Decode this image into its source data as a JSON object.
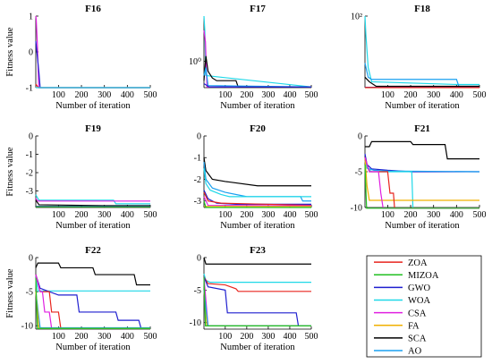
{
  "figure": {
    "x_label": "Number of iteration",
    "y_label": "Fitness value",
    "x_ticks": [
      100,
      200,
      300,
      400,
      500
    ]
  },
  "legend": {
    "items": [
      {
        "name": "ZOA",
        "color": "#e8251e"
      },
      {
        "name": "MIZOA",
        "color": "#22c022"
      },
      {
        "name": "GWO",
        "color": "#1f1fcf"
      },
      {
        "name": "WOA",
        "color": "#1fd8e8"
      },
      {
        "name": "CSA",
        "color": "#e020e0"
      },
      {
        "name": "FA",
        "color": "#f0b000"
      },
      {
        "name": "SCA",
        "color": "#000000"
      },
      {
        "name": "AO",
        "color": "#1aa0f0"
      }
    ]
  },
  "chart_data": [
    {
      "type": "line",
      "title": "F16",
      "xlabel": "Number of iteration",
      "ylabel": "Fitness value",
      "xlim": [
        1,
        500
      ],
      "ylim": [
        -1,
        1
      ],
      "y_ticks": [
        {
          "value": 1,
          "label": "1"
        },
        {
          "value": 0,
          "label": "0"
        },
        {
          "value": -1,
          "label": "-1"
        }
      ],
      "series": [
        {
          "name": "CSA",
          "color": "#e020e0",
          "x": [
            1,
            3,
            8,
            14,
            500
          ],
          "y": [
            1,
            0.9,
            0.2,
            -1,
            -1
          ]
        },
        {
          "name": "GWO",
          "color": "#1f1fcf",
          "x": [
            1,
            9,
            15,
            20,
            500
          ],
          "y": [
            0.3,
            -0.2,
            -0.6,
            -1,
            -1
          ]
        },
        {
          "name": "ZOA",
          "color": "#e8251e",
          "x": [
            1,
            12,
            500
          ],
          "y": [
            -0.9,
            -1,
            -1
          ]
        },
        {
          "name": "WOA",
          "color": "#1fd8e8",
          "x": [
            1,
            500
          ],
          "y": [
            -1,
            -1
          ]
        }
      ]
    },
    {
      "type": "line",
      "title": "F17",
      "xlabel": "Number of iteration",
      "ylabel": "",
      "xlim": [
        1,
        500
      ],
      "ylim": [
        0.39,
        5
      ],
      "log_y": true,
      "y_ticks": [
        {
          "value": 1,
          "label": "10⁰"
        }
      ],
      "series": [
        {
          "name": "WOA",
          "color": "#1fd8e8",
          "x": [
            1,
            5,
            10,
            500
          ],
          "y": [
            5,
            3,
            0.6,
            0.4
          ]
        },
        {
          "name": "CSA",
          "color": "#e020e0",
          "x": [
            1,
            8,
            15,
            500
          ],
          "y": [
            3,
            2,
            0.4,
            0.4
          ]
        },
        {
          "name": "SCA",
          "color": "#000000",
          "x": [
            1,
            10,
            20,
            40,
            60,
            150,
            160,
            500
          ],
          "y": [
            0.5,
            1.2,
            0.7,
            0.55,
            0.5,
            0.5,
            0.4,
            0.4
          ]
        },
        {
          "name": "AO",
          "color": "#1aa0f0",
          "x": [
            1,
            10,
            20,
            500
          ],
          "y": [
            0.6,
            0.8,
            0.42,
            0.4
          ]
        },
        {
          "name": "GWO",
          "color": "#1f1fcf",
          "x": [
            1,
            25,
            500
          ],
          "y": [
            0.45,
            0.4,
            0.4
          ]
        }
      ]
    },
    {
      "type": "line",
      "title": "F18",
      "xlabel": "Number of iteration",
      "ylabel": "",
      "xlim": [
        1,
        500
      ],
      "ylim": [
        3,
        100
      ],
      "log_y": true,
      "y_ticks": [
        {
          "value": 100,
          "label": "10²"
        }
      ],
      "series": [
        {
          "name": "WOA",
          "color": "#1fd8e8",
          "x": [
            1,
            5,
            15,
            30,
            400,
            500
          ],
          "y": [
            100,
            40,
            8,
            4,
            3.5,
            3.5
          ]
        },
        {
          "name": "AO",
          "color": "#1aa0f0",
          "x": [
            1,
            15,
            30,
            400,
            410,
            500
          ],
          "y": [
            10,
            5,
            4.5,
            4.5,
            3.2,
            3.2
          ]
        },
        {
          "name": "SCA",
          "color": "#000000",
          "x": [
            1,
            20,
            50,
            500
          ],
          "y": [
            5,
            4,
            3.2,
            3.2
          ]
        },
        {
          "name": "FA",
          "color": "#f0b000",
          "x": [
            1,
            500
          ],
          "y": [
            3,
            3
          ]
        },
        {
          "name": "GWO",
          "color": "#1f1fcf",
          "x": [
            1,
            500
          ],
          "y": [
            3.05,
            3.05
          ]
        },
        {
          "name": "ZOA",
          "color": "#e8251e",
          "x": [
            1,
            500
          ],
          "y": [
            3.02,
            3.02
          ]
        }
      ]
    },
    {
      "type": "line",
      "title": "F19",
      "xlabel": "Number of iteration",
      "ylabel": "Fitness value",
      "xlim": [
        1,
        500
      ],
      "ylim": [
        -3.9,
        0
      ],
      "y_ticks": [
        {
          "value": 0,
          "label": "0"
        },
        {
          "value": -1,
          "label": "-1"
        },
        {
          "value": -2,
          "label": "-2"
        },
        {
          "value": -3,
          "label": "-3"
        }
      ],
      "series": [
        {
          "name": "WOA",
          "color": "#1fd8e8",
          "x": [
            1,
            5,
            15,
            340,
            350,
            500
          ],
          "y": [
            -3.2,
            -3.3,
            -3.5,
            -3.5,
            -3.7,
            -3.7
          ]
        },
        {
          "name": "CSA",
          "color": "#e020e0",
          "x": [
            1,
            10,
            500
          ],
          "y": [
            -3.4,
            -3.55,
            -3.55
          ]
        },
        {
          "name": "SCA",
          "color": "#000000",
          "x": [
            1,
            15,
            300,
            500
          ],
          "y": [
            -3.5,
            -3.75,
            -3.8,
            -3.8
          ]
        },
        {
          "name": "GWO",
          "color": "#1f1fcf",
          "x": [
            1,
            500
          ],
          "y": [
            -3.84,
            -3.84
          ]
        },
        {
          "name": "MIZOA",
          "color": "#22c022",
          "x": [
            1,
            500
          ],
          "y": [
            -3.86,
            -3.86
          ]
        }
      ]
    },
    {
      "type": "line",
      "title": "F20",
      "xlabel": "Number of iteration",
      "ylabel": "",
      "xlim": [
        1,
        500
      ],
      "ylim": [
        -3.3,
        0
      ],
      "y_ticks": [
        {
          "value": 0,
          "label": "0"
        },
        {
          "value": -1,
          "label": "-1"
        },
        {
          "value": -2,
          "label": "-2"
        },
        {
          "value": -3,
          "label": "-3"
        }
      ],
      "series": [
        {
          "name": "SCA",
          "color": "#000000",
          "x": [
            1,
            10,
            40,
            100,
            250,
            500
          ],
          "y": [
            -1,
            -1.6,
            -2.0,
            -2.1,
            -2.3,
            -2.3
          ]
        },
        {
          "name": "AO",
          "color": "#1aa0f0",
          "x": [
            1,
            10,
            40,
            100,
            200,
            450,
            460,
            500
          ],
          "y": [
            -1.2,
            -2.0,
            -2.4,
            -2.6,
            -2.8,
            -2.8,
            -3.0,
            -3.0
          ]
        },
        {
          "name": "WOA",
          "color": "#1fd8e8",
          "x": [
            1,
            10,
            30,
            80,
            120,
            500
          ],
          "y": [
            -1.5,
            -2.2,
            -2.5,
            -2.7,
            -2.8,
            -2.8
          ]
        },
        {
          "name": "GWO",
          "color": "#1f1fcf",
          "x": [
            1,
            20,
            60,
            150,
            500
          ],
          "y": [
            -2.5,
            -2.9,
            -3.1,
            -3.15,
            -3.15
          ]
        },
        {
          "name": "ZOA",
          "color": "#e8251e",
          "x": [
            1,
            20,
            80,
            500
          ],
          "y": [
            -2.6,
            -3.0,
            -3.1,
            -3.2
          ]
        },
        {
          "name": "CSA",
          "color": "#e020e0",
          "x": [
            1,
            20,
            500
          ],
          "y": [
            -2.8,
            -3.2,
            -3.22
          ]
        },
        {
          "name": "FA",
          "color": "#f0b000",
          "x": [
            1,
            500
          ],
          "y": [
            -3.25,
            -3.25
          ]
        },
        {
          "name": "MIZOA",
          "color": "#22c022",
          "x": [
            1,
            10,
            500
          ],
          "y": [
            -3.0,
            -3.3,
            -3.3
          ]
        }
      ]
    },
    {
      "type": "line",
      "title": "F21",
      "xlabel": "Number of iteration",
      "ylabel": "",
      "xlim": [
        1,
        500
      ],
      "ylim": [
        -10,
        0
      ],
      "y_ticks": [
        {
          "value": 0,
          "label": "0"
        },
        {
          "value": -5,
          "label": "-5"
        },
        {
          "value": -10,
          "label": "-10"
        }
      ],
      "series": [
        {
          "name": "SCA",
          "color": "#000000",
          "x": [
            1,
            20,
            30,
            200,
            210,
            350,
            360,
            500
          ],
          "y": [
            -1.5,
            -1.5,
            -0.8,
            -0.8,
            -1.2,
            -1.2,
            -3.2,
            -3.2
          ]
        },
        {
          "name": "GWO",
          "color": "#1f1fcf",
          "x": [
            1,
            10,
            30,
            100,
            200,
            500
          ],
          "y": [
            -2.5,
            -4.0,
            -4.6,
            -4.8,
            -5.0,
            -5.0
          ]
        },
        {
          "name": "AO",
          "color": "#1aa0f0",
          "x": [
            1,
            10,
            40,
            100,
            500
          ],
          "y": [
            -3.0,
            -4.5,
            -4.8,
            -4.9,
            -5.0
          ]
        },
        {
          "name": "WOA",
          "color": "#1fd8e8",
          "x": [
            1,
            10,
            30,
            205,
            210,
            500
          ],
          "y": [
            -3.5,
            -4.5,
            -5.0,
            -5.0,
            -10.1,
            -10.1
          ]
        },
        {
          "name": "FA",
          "color": "#f0b000",
          "x": [
            1,
            10,
            20,
            500
          ],
          "y": [
            -3.0,
            -7.0,
            -9.0,
            -9.0
          ]
        },
        {
          "name": "ZOA",
          "color": "#e8251e",
          "x": [
            1,
            20,
            100,
            110,
            125,
            130,
            500
          ],
          "y": [
            -3.0,
            -5.0,
            -5.0,
            -8.0,
            -8.0,
            -10.1,
            -10.1
          ]
        },
        {
          "name": "CSA",
          "color": "#e020e0",
          "x": [
            1,
            20,
            60,
            70,
            80,
            500
          ],
          "y": [
            -3.0,
            -5.0,
            -5.0,
            -8.0,
            -10.1,
            -10.1
          ]
        },
        {
          "name": "MIZOA",
          "color": "#22c022",
          "x": [
            1,
            8,
            500
          ],
          "y": [
            -4.0,
            -10.1,
            -10.1
          ]
        }
      ]
    },
    {
      "type": "line",
      "title": "F22",
      "xlabel": "Number of iteration",
      "ylabel": "Fitness value",
      "xlim": [
        1,
        500
      ],
      "ylim": [
        -10.5,
        0
      ],
      "y_ticks": [
        {
          "value": 0,
          "label": "0"
        },
        {
          "value": -5,
          "label": "-5"
        },
        {
          "value": -10,
          "label": "-10"
        }
      ],
      "series": [
        {
          "name": "SCA",
          "color": "#000000",
          "x": [
            1,
            10,
            100,
            110,
            250,
            260,
            430,
            440,
            500
          ],
          "y": [
            -1.5,
            -0.8,
            -0.8,
            -1.5,
            -1.5,
            -2.5,
            -2.5,
            -4.0,
            -4.0
          ]
        },
        {
          "name": "WOA",
          "color": "#1fd8e8",
          "x": [
            1,
            10,
            500
          ],
          "y": [
            -2.5,
            -4.9,
            -4.9
          ]
        },
        {
          "name": "GWO",
          "color": "#1f1fcf",
          "x": [
            1,
            20,
            100,
            180,
            190,
            350,
            360,
            450,
            460,
            500
          ],
          "y": [
            -2.5,
            -4.5,
            -5.5,
            -5.5,
            -8.0,
            -8.0,
            -9.2,
            -9.2,
            -10.4,
            -10.4
          ]
        },
        {
          "name": "ZOA",
          "color": "#e8251e",
          "x": [
            1,
            20,
            60,
            70,
            100,
            110,
            500
          ],
          "y": [
            -2.5,
            -5.0,
            -5.0,
            -8.0,
            -8.0,
            -10.4,
            -10.4
          ]
        },
        {
          "name": "CSA",
          "color": "#e020e0",
          "x": [
            1,
            20,
            30,
            40,
            60,
            70,
            500
          ],
          "y": [
            -2.5,
            -5.0,
            -5.0,
            -8.0,
            -8.0,
            -10.4,
            -10.4
          ]
        },
        {
          "name": "AO",
          "color": "#1aa0f0",
          "x": [
            1,
            20,
            500
          ],
          "y": [
            -5.0,
            -10.3,
            -10.3
          ]
        },
        {
          "name": "FA",
          "color": "#f0b000",
          "x": [
            1,
            15,
            500
          ],
          "y": [
            -5.0,
            -10.4,
            -10.4
          ]
        },
        {
          "name": "MIZOA",
          "color": "#22c022",
          "x": [
            1,
            8,
            500
          ],
          "y": [
            -3.0,
            -10.4,
            -10.4
          ]
        }
      ]
    },
    {
      "type": "line",
      "title": "F23",
      "xlabel": "Number of iteration",
      "ylabel": "",
      "xlim": [
        1,
        500
      ],
      "ylim": [
        -11,
        0
      ],
      "y_ticks": [
        {
          "value": 0,
          "label": "0"
        },
        {
          "value": -5,
          "label": "-5"
        },
        {
          "value": -10,
          "label": "-10"
        }
      ],
      "series": [
        {
          "name": "SCA",
          "color": "#000000",
          "x": [
            1,
            10,
            500
          ],
          "y": [
            0,
            -1.0,
            -1.0
          ]
        },
        {
          "name": "WOA",
          "color": "#1fd8e8",
          "x": [
            1,
            10,
            30,
            500
          ],
          "y": [
            -2.5,
            -3.5,
            -3.8,
            -3.8
          ]
        },
        {
          "name": "ZOA",
          "color": "#e8251e",
          "x": [
            1,
            20,
            100,
            150,
            160,
            500
          ],
          "y": [
            -3.0,
            -4.0,
            -4.2,
            -4.8,
            -5.2,
            -5.2
          ]
        },
        {
          "name": "GWO",
          "color": "#1f1fcf",
          "x": [
            1,
            20,
            100,
            110,
            430,
            440,
            500
          ],
          "y": [
            -3.0,
            -4.5,
            -5.0,
            -8.5,
            -8.5,
            -10.5,
            -10.5
          ]
        },
        {
          "name": "CSA",
          "color": "#e020e0",
          "x": [
            1,
            20,
            500
          ],
          "y": [
            -3.0,
            -10.5,
            -10.5
          ]
        },
        {
          "name": "FA",
          "color": "#f0b000",
          "x": [
            1,
            15,
            500
          ],
          "y": [
            -5.0,
            -10.5,
            -10.5
          ]
        },
        {
          "name": "AO",
          "color": "#1aa0f0",
          "x": [
            1,
            20,
            500
          ],
          "y": [
            -5.0,
            -10.5,
            -10.5
          ]
        },
        {
          "name": "MIZOA",
          "color": "#22c022",
          "x": [
            1,
            8,
            500
          ],
          "y": [
            -3.0,
            -10.5,
            -10.5
          ]
        }
      ]
    }
  ]
}
